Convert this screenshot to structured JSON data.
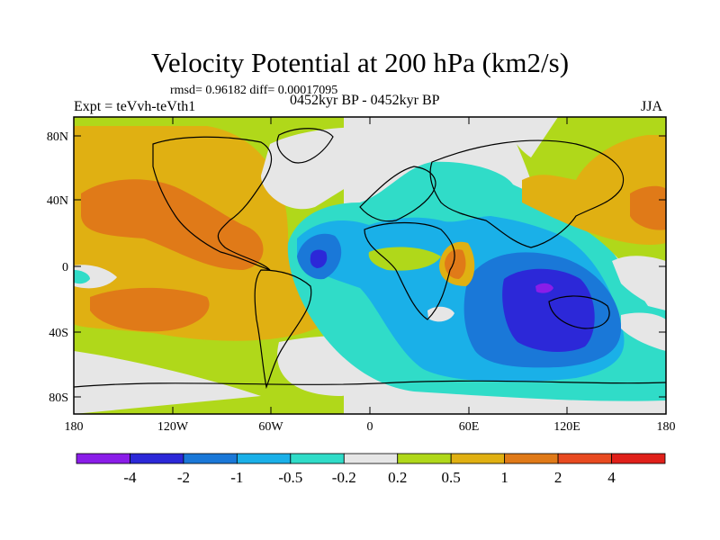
{
  "title": "Velocity Potential at 200 hPa (km2/s)",
  "stats": "rmsd= 0.96182 diff= 0.00017095",
  "left_label": "Expt = teVvh-teVth1",
  "center_label": "0452kyr BP - 0452kyr BP",
  "right_label": "JJA",
  "lat_ticks": [
    "80N",
    "40N",
    "0",
    "40S",
    "80S"
  ],
  "lon_ticks": [
    "180",
    "120W",
    "60W",
    "0",
    "60E",
    "120E",
    "180"
  ],
  "colorbar": {
    "colors": [
      "#8a1de8",
      "#2c28d8",
      "#1a78d8",
      "#1ab0e8",
      "#30dcc8",
      "#e6e6e6",
      "#b0d81a",
      "#e0b012",
      "#e07a18",
      "#e84a20",
      "#e0201a"
    ],
    "labels": [
      "-4",
      "-2",
      "-1",
      "-0.5",
      "-0.2",
      "0.2",
      "0.5",
      "1",
      "2",
      "4"
    ]
  }
}
